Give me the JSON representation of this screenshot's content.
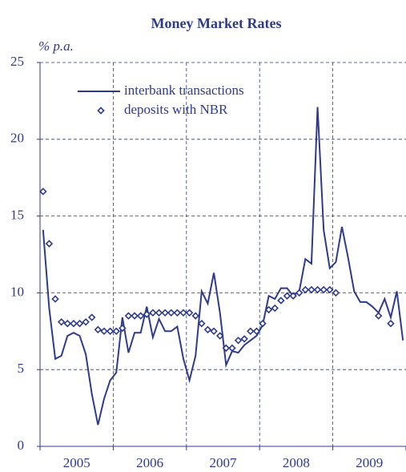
{
  "chart_data": {
    "type": "line",
    "title": "Money Market Rates",
    "y_label": "% p.a.",
    "categories": [
      null,
      null,
      null,
      null,
      null,
      null,
      "2005",
      null,
      null,
      null,
      null,
      null,
      null,
      null,
      null,
      null,
      null,
      null,
      "2006",
      null,
      null,
      null,
      null,
      null,
      null,
      null,
      null,
      null,
      null,
      null,
      "2007",
      null,
      null,
      null,
      null,
      null,
      null,
      null,
      null,
      null,
      null,
      null,
      "2008",
      null,
      null,
      null,
      null,
      null,
      null,
      null,
      null,
      null,
      null,
      null,
      "2009",
      null,
      null,
      null,
      null,
      null
    ],
    "series": [
      {
        "name": "interbank transactions",
        "color": "#2e3b8c",
        "marker": "line",
        "values": [
          14.1,
          9.0,
          5.7,
          5.9,
          7.2,
          7.4,
          7.2,
          6.0,
          3.4,
          1.4,
          3.1,
          4.3,
          4.8,
          8.4,
          6.1,
          7.4,
          7.4,
          9.1,
          7.1,
          8.3,
          7.5,
          7.5,
          7.8,
          5.7,
          4.3,
          5.9,
          10.1,
          9.3,
          11.3,
          8.7,
          5.3,
          6.2,
          6.1,
          6.6,
          6.9,
          7.2,
          7.9,
          9.8,
          9.6,
          10.3,
          10.3,
          9.8,
          10.1,
          12.2,
          11.9,
          22.1,
          14.1,
          11.6,
          12.0,
          14.3,
          12.3,
          10.1,
          9.4,
          9.4,
          9.1,
          8.7,
          9.6,
          8.4,
          10.1,
          6.9
        ]
      },
      {
        "name": "deposits with NBR",
        "color": "#2e3b8c",
        "marker": "diamond",
        "values": [
          16.6,
          13.2,
          9.6,
          8.1,
          8.0,
          8.0,
          8.0,
          8.1,
          8.4,
          7.6,
          7.5,
          7.5,
          7.5,
          7.7,
          8.5,
          8.5,
          8.5,
          8.6,
          8.7,
          8.7,
          8.7,
          8.7,
          8.7,
          8.7,
          8.7,
          8.5,
          8.0,
          7.6,
          7.5,
          7.2,
          6.4,
          6.4,
          6.9,
          7.0,
          7.5,
          7.5,
          8.0,
          8.9,
          9.0,
          9.5,
          9.8,
          9.8,
          10.0,
          10.2,
          10.2,
          10.2,
          10.2,
          10.2,
          10.0,
          null,
          null,
          null,
          null,
          null,
          null,
          8.5,
          null,
          8.0,
          null,
          null
        ]
      }
    ],
    "ylim": [
      0,
      25
    ],
    "yticks": [
      0,
      5,
      10,
      15,
      20,
      25
    ],
    "grid": true,
    "legend": "upper left"
  }
}
